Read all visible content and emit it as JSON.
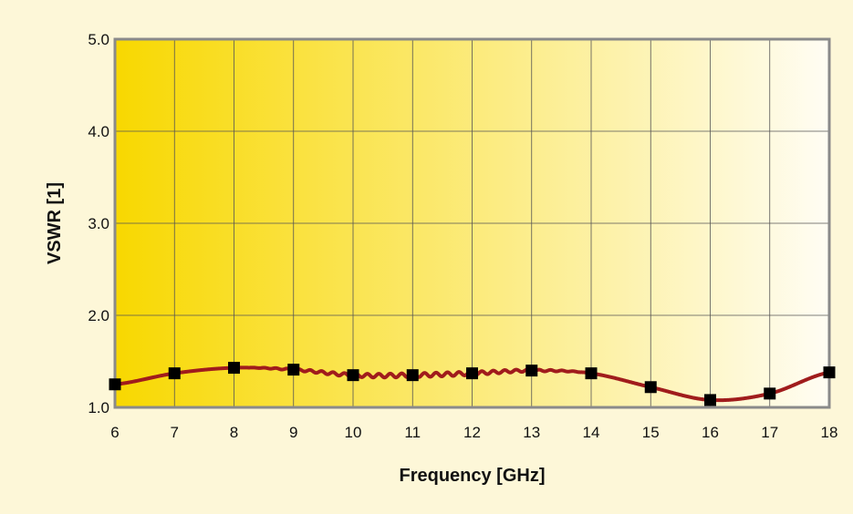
{
  "chart_data": {
    "type": "line",
    "title": "",
    "xlabel": "Frequency [GHz]",
    "ylabel": "VSWR [1]",
    "xlim": [
      6,
      18
    ],
    "ylim": [
      1.0,
      5.0
    ],
    "x_ticks": [
      "6",
      "7",
      "8",
      "9",
      "10",
      "11",
      "12",
      "13",
      "14",
      "15",
      "16",
      "17",
      "18"
    ],
    "y_ticks": [
      "1.0",
      "2.0",
      "3.0",
      "4.0",
      "5.0"
    ],
    "grid": true,
    "legend": "none",
    "colors": {
      "line": "#a01c1c",
      "marker": "#000000",
      "grid": "#555555",
      "frame": "#8a8a8a",
      "gradient_left": "#f8d800",
      "gradient_right": "#fffdf4"
    },
    "series": [
      {
        "markers": [
          {
            "x": 6,
            "y": 1.25
          },
          {
            "x": 7,
            "y": 1.37
          },
          {
            "x": 8,
            "y": 1.43
          },
          {
            "x": 9,
            "y": 1.41
          },
          {
            "x": 10,
            "y": 1.35
          },
          {
            "x": 11,
            "y": 1.35
          },
          {
            "x": 12,
            "y": 1.37
          },
          {
            "x": 13,
            "y": 1.4
          },
          {
            "x": 14,
            "y": 1.37
          },
          {
            "x": 15,
            "y": 1.22
          },
          {
            "x": 16,
            "y": 1.08
          },
          {
            "x": 17,
            "y": 1.15
          },
          {
            "x": 18,
            "y": 1.38
          }
        ]
      }
    ]
  }
}
